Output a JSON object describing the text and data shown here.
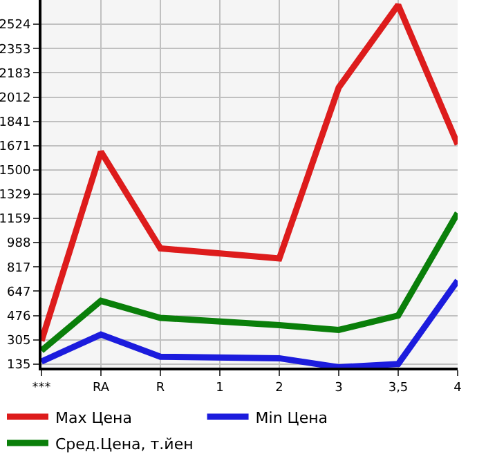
{
  "chart_data": {
    "type": "line",
    "categories": [
      "***",
      "RA",
      "R",
      "1",
      "2",
      "3",
      "3,5",
      "4"
    ],
    "series": [
      {
        "name": "Max Цена",
        "color": "#dd1c1c",
        "values": [
          297,
          1628,
          948,
          null,
          877,
          2080,
          2660,
          1679
        ]
      },
      {
        "name": "Min Цена",
        "color": "#1c1cdd",
        "values": [
          152,
          342,
          186,
          null,
          175,
          112,
          135,
          721
        ]
      },
      {
        "name": "Сред.Цена, т.йен",
        "color": "#0a7f0a",
        "values": [
          229,
          579,
          459,
          null,
          408,
          374,
          476,
          1196
        ]
      }
    ],
    "ylim": [
      109,
      2695
    ],
    "yticks": [
      135,
      305,
      476,
      647,
      817,
      988,
      1159,
      1329,
      1500,
      1671,
      1841,
      2012,
      2183,
      2353,
      2524
    ],
    "grid": true,
    "legend": "bottom",
    "marker": "none",
    "line_style": "solid"
  }
}
